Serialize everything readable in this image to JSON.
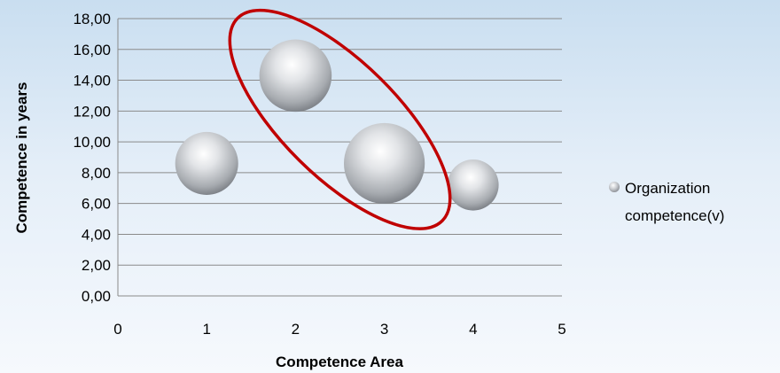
{
  "chart_data": {
    "type": "bubble",
    "xlabel": "Competence Area",
    "ylabel": "Competence in years",
    "xlim": [
      0,
      5
    ],
    "ylim": [
      0,
      18
    ],
    "x_ticks": [
      "0",
      "1",
      "2",
      "3",
      "4",
      "5"
    ],
    "y_ticks": [
      "0,00",
      "2,00",
      "4,00",
      "6,00",
      "8,00",
      "10,00",
      "12,00",
      "14,00",
      "16,00",
      "18,00"
    ],
    "grid": "horizontal",
    "legend_position": "right",
    "series": [
      {
        "name_lines": [
          "Organization",
          "competence(v)"
        ],
        "points": [
          {
            "x": 1,
            "y": 8.6,
            "size": 0.74
          },
          {
            "x": 2,
            "y": 14.3,
            "size": 0.85
          },
          {
            "x": 3,
            "y": 8.6,
            "size": 0.95
          },
          {
            "x": 4,
            "y": 7.2,
            "size": 0.6
          }
        ]
      }
    ],
    "annotation": {
      "shape": "ellipse",
      "color": "#c00000",
      "highlights": [
        2,
        3
      ]
    }
  }
}
